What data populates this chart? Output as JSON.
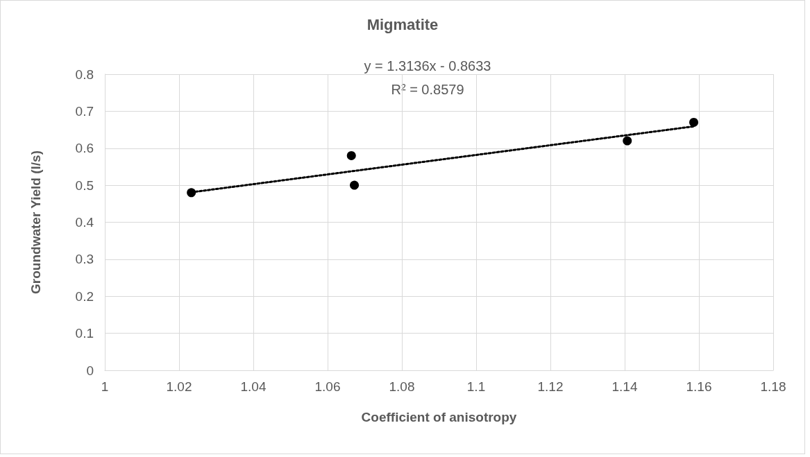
{
  "chart_data": {
    "type": "scatter",
    "title": "Migmatite",
    "xlabel": "Coefficient of anisotropy",
    "ylabel": "Groundwater Yield (l/s)",
    "annotations": [
      "y = 1.3136x - 0.8633",
      "R² = 0.8579"
    ],
    "series": [
      {
        "color": "#000000",
        "x": [
          1.0233,
          1.0664,
          1.0672,
          1.1407,
          1.1586
        ],
        "values": [
          0.48,
          0.58,
          0.5,
          0.62,
          0.67
        ],
        "marker": "circle"
      },
      {
        "type": "line",
        "color": "#000000",
        "line_style": "dotted",
        "marker": "none",
        "x": [
          1.0233,
          1.1586
        ],
        "values": [
          0.481,
          0.659
        ]
      }
    ],
    "xlim": [
      1,
      1.18
    ],
    "xticks": [
      1,
      1.02,
      1.04,
      1.06,
      1.08,
      1.1,
      1.12,
      1.14,
      1.16,
      1.18
    ],
    "ylim": [
      0,
      0.8
    ],
    "yticks": [
      0,
      0.1,
      0.2,
      0.3,
      0.4,
      0.5,
      0.6,
      0.7,
      0.8
    ],
    "grid": true
  }
}
